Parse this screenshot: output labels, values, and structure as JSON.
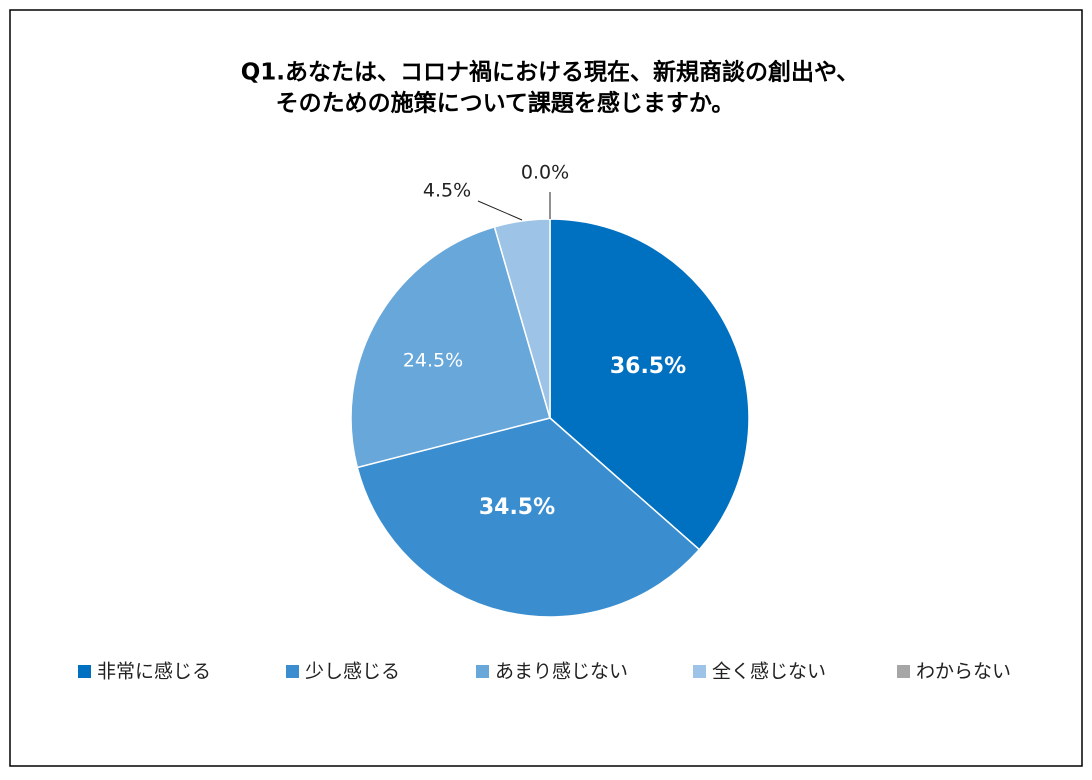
{
  "chart_data": {
    "type": "pie",
    "title": [
      "Q1.あなたは、コロナ禍における現在、新規商談の創出や、",
      "そのための施策について課題を感じますか。"
    ],
    "categories": [
      "非常に感じる",
      "少し感じる",
      "あまり感じない",
      "全く感じない",
      "わからない"
    ],
    "values": [
      36.5,
      34.5,
      24.5,
      4.5,
      0.0
    ],
    "value_labels": [
      "36.5%",
      "34.5%",
      "24.5%",
      "4.5%",
      "0.0%"
    ],
    "colors": [
      "#0070c0",
      "#3a8ecf",
      "#68a7da",
      "#9dc3e6",
      "#a6a6a6"
    ],
    "legend": "bottom"
  }
}
